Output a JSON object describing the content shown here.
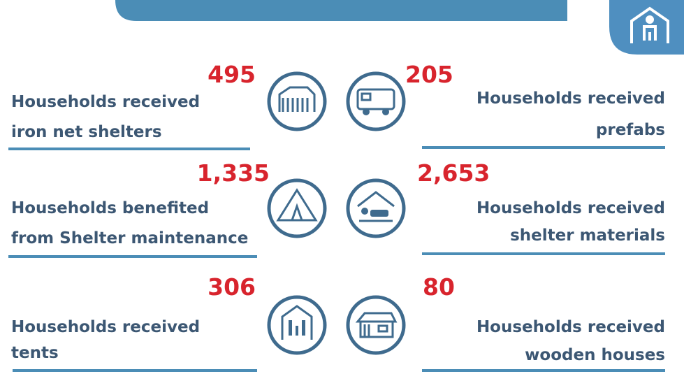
{
  "items": [
    {
      "number": "495",
      "label": [
        "Households received",
        "iron net shelters"
      ]
    },
    {
      "number": "205",
      "label": [
        "Households received",
        "prefabs"
      ]
    },
    {
      "number": "1,335",
      "label": [
        "Households benefited",
        "from Shelter maintenance"
      ]
    },
    {
      "number": "2,653",
      "label": [
        "Households received",
        "shelter materials"
      ]
    },
    {
      "number": "306",
      "label": [
        "Households received",
        "tents"
      ]
    },
    {
      "number": "80",
      "label": [
        "Households received",
        "wooden houses"
      ]
    }
  ]
}
